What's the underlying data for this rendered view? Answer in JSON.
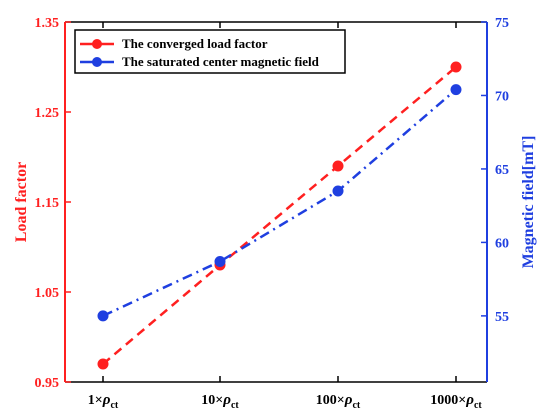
{
  "chart_data": {
    "type": "line",
    "categories": [
      {
        "prefix": "1×",
        "symbol": "ρ",
        "subscript": "ct"
      },
      {
        "prefix": "10×",
        "symbol": "ρ",
        "subscript": "ct"
      },
      {
        "prefix": "100×",
        "symbol": "ρ",
        "subscript": "ct"
      },
      {
        "prefix": "1000×",
        "symbol": "ρ",
        "subscript": "ct"
      }
    ],
    "series": [
      {
        "name": "The converged load factor",
        "axis": "left",
        "values": [
          0.97,
          1.08,
          1.19,
          1.3
        ],
        "color": "#ff2020",
        "line_style": "dashed"
      },
      {
        "name": "The saturated center magnetic field",
        "axis": "right",
        "values": [
          55.0,
          58.7,
          63.5,
          70.4
        ],
        "color": "#1f3fe0",
        "line_style": "dash-dot"
      }
    ],
    "y_left": {
      "label": "Load factor",
      "range": [
        0.95,
        1.35
      ],
      "ticks": [
        "0.95",
        "1.05",
        "1.15",
        "1.25",
        "1.35"
      ],
      "tick_values": [
        0.95,
        1.05,
        1.15,
        1.25,
        1.35
      ],
      "color": "#ff2020"
    },
    "y_right": {
      "label": "Magnetic field[mT]",
      "range": [
        50.5,
        75
      ],
      "ticks": [
        "55",
        "60",
        "65",
        "70",
        "75"
      ],
      "tick_values": [
        55,
        60,
        65,
        70,
        75
      ],
      "color": "#1f3fe0"
    },
    "legend_position": "top-left",
    "grid": false
  }
}
